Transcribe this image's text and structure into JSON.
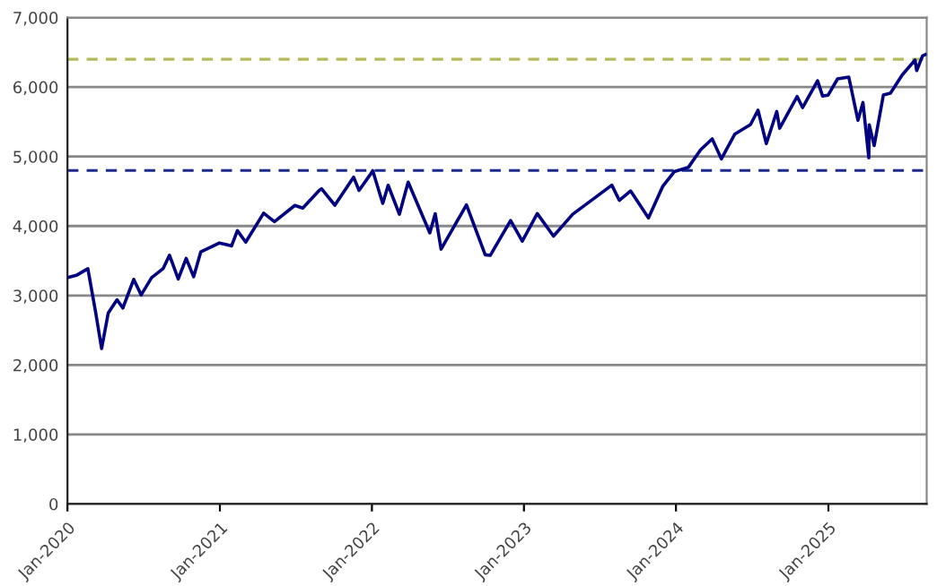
{
  "chart_data": {
    "type": "line",
    "x": [
      "2020-01-02",
      "2020-01-24",
      "2020-02-19",
      "2020-03-09",
      "2020-03-23",
      "2020-04-08",
      "2020-04-29",
      "2020-05-13",
      "2020-06-08",
      "2020-06-26",
      "2020-07-21",
      "2020-08-18",
      "2020-09-02",
      "2020-09-23",
      "2020-10-12",
      "2020-10-30",
      "2020-11-16",
      "2020-12-31",
      "2021-01-29",
      "2021-02-12",
      "2021-03-04",
      "2021-04-16",
      "2021-05-12",
      "2021-06-30",
      "2021-07-19",
      "2021-08-27",
      "2021-09-02",
      "2021-10-04",
      "2021-11-18",
      "2021-12-01",
      "2021-12-31",
      "2022-01-03",
      "2022-01-27",
      "2022-02-09",
      "2022-03-08",
      "2022-03-29",
      "2022-05-20",
      "2022-06-02",
      "2022-06-16",
      "2022-08-16",
      "2022-09-30",
      "2022-10-12",
      "2022-11-30",
      "2022-12-28",
      "2023-02-02",
      "2023-03-13",
      "2023-04-28",
      "2023-06-30",
      "2023-07-31",
      "2023-08-18",
      "2023-09-14",
      "2023-10-27",
      "2023-11-30",
      "2023-12-28",
      "2024-01-31",
      "2024-02-29",
      "2024-03-28",
      "2024-04-19",
      "2024-05-21",
      "2024-06-28",
      "2024-07-16",
      "2024-08-05",
      "2024-08-30",
      "2024-09-06",
      "2024-10-18",
      "2024-10-31",
      "2024-12-06",
      "2024-12-18",
      "2024-12-31",
      "2025-01-23",
      "2025-02-19",
      "2025-03-13",
      "2025-03-25",
      "2025-04-08",
      "2025-04-09",
      "2025-04-21",
      "2025-05-13",
      "2025-05-30",
      "2025-06-27",
      "2025-07-28",
      "2025-08-01",
      "2025-08-15",
      "2025-08-22"
    ],
    "series": [
      {
        "color": "#000080",
        "values": [
          3258,
          3295,
          3386,
          2746,
          2237,
          2750,
          2939,
          2820,
          3232,
          3009,
          3257,
          3390,
          3580,
          3237,
          3534,
          3270,
          3627,
          3756,
          3714,
          3934,
          3768,
          4185,
          4063,
          4297,
          4258,
          4509,
          4537,
          4300,
          4704,
          4513,
          4766,
          4797,
          4326,
          4587,
          4170,
          4632,
          3901,
          4176,
          3667,
          4305,
          3586,
          3577,
          4080,
          3783,
          4179,
          3855,
          4169,
          4450,
          4589,
          4370,
          4505,
          4117,
          4568,
          4783,
          4846,
          5096,
          5254,
          4967,
          5321,
          5460,
          5667,
          5186,
          5648,
          5408,
          5864,
          5705,
          6090,
          5872,
          5882,
          6118,
          6144,
          5521,
          5777,
          4982,
          5457,
          5158,
          5886,
          5912,
          6173,
          6389,
          6238,
          6449,
          6467
        ]
      }
    ],
    "xlim": [
      "2020-01-01",
      "2025-08-25"
    ],
    "xticks": [
      {
        "value": "2020-01-01",
        "label": "Jan-2020"
      },
      {
        "value": "2021-01-01",
        "label": "Jan-2021"
      },
      {
        "value": "2022-01-01",
        "label": "Jan-2022"
      },
      {
        "value": "2023-01-01",
        "label": "Jan-2023"
      },
      {
        "value": "2024-01-01",
        "label": "Jan-2024"
      },
      {
        "value": "2025-01-01",
        "label": "Jan-2025"
      }
    ],
    "ylim": [
      0,
      7000
    ],
    "yticks": [
      {
        "value": 0,
        "label": "0"
      },
      {
        "value": 1000,
        "label": "1,000"
      },
      {
        "value": 2000,
        "label": "2,000"
      },
      {
        "value": 3000,
        "label": "3,000"
      },
      {
        "value": 4000,
        "label": "4,000"
      },
      {
        "value": 5000,
        "label": "5,000"
      },
      {
        "value": 6000,
        "label": "6,000"
      },
      {
        "value": 7000,
        "label": "7,000"
      }
    ],
    "grid": "y",
    "ref_lines": [
      {
        "axis": "y",
        "value": 4800,
        "color": "#1c2a8c",
        "line_style": "dashed"
      },
      {
        "axis": "y",
        "value": 6400,
        "color": "#b4b95a",
        "line_style": "dashed"
      }
    ]
  }
}
